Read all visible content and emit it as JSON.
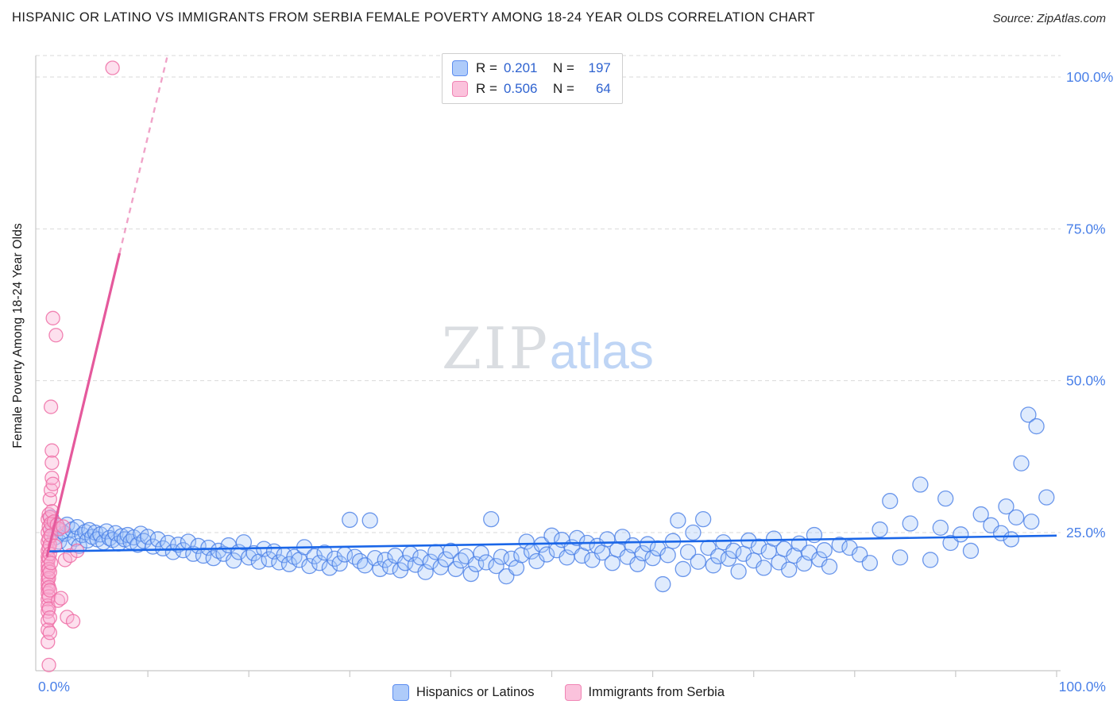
{
  "header": {
    "title": "HISPANIC OR LATINO VS IMMIGRANTS FROM SERBIA FEMALE POVERTY AMONG 18-24 YEAR OLDS CORRELATION CHART",
    "source": "Source: ZipAtlas.com"
  },
  "watermark": {
    "zip": "ZIP",
    "atlas": "atlas"
  },
  "correlation_legend": {
    "rows": [
      {
        "r_label": "R =",
        "r_value": "0.201",
        "n_label": "N =",
        "n_value": "197"
      },
      {
        "r_label": "R =",
        "r_value": "0.506",
        "n_label": "N =",
        "n_value": "64"
      }
    ]
  },
  "axes": {
    "y_label": "Female Poverty Among 18-24 Year Olds",
    "y_ticks": [
      {
        "value": 100,
        "label": "100.0%"
      },
      {
        "value": 75,
        "label": "75.0%"
      },
      {
        "value": 50,
        "label": "50.0%"
      },
      {
        "value": 25,
        "label": "25.0%"
      }
    ],
    "x_min_label": "0.0%",
    "x_max_label": "100.0%",
    "tick_color": "#4a80e8",
    "grid_color": "#d9d9d9",
    "axis_color": "#c8c8c8"
  },
  "bottom_legend": {
    "items": [
      {
        "label": "Hispanics or Latinos"
      },
      {
        "label": "Immigrants from Serbia"
      }
    ]
  },
  "chart_data": {
    "type": "scatter",
    "title": "Hispanic or Latino vs Immigrants from Serbia Female Poverty Among 18-24 Year Olds",
    "xlabel": "",
    "ylabel": "Female Poverty Among 18-24 Year Olds",
    "xlim": [
      0,
      100
    ],
    "ylim": [
      0,
      103.5
    ],
    "y_gridlines": [
      25,
      50,
      75,
      100
    ],
    "x_ticks": [
      10,
      20,
      30,
      40,
      50,
      60,
      70,
      80,
      90,
      100
    ],
    "grid": true,
    "legend_position": "bottom",
    "series": [
      {
        "name": "Hispanics or Latinos",
        "R": 0.201,
        "N": 197,
        "swatch_fill": "#aecbfa",
        "swatch_stroke": "#5c8df0",
        "point_fill": "rgba(164,199,250,0.35)",
        "point_stroke": "rgba(73,126,230,0.8)",
        "trend_color": "#1a66e8",
        "trend_solid": [
          [
            0,
            21.9
          ],
          [
            100,
            24.5
          ]
        ],
        "points": [
          [
            0.4,
            27.5
          ],
          [
            0.6,
            25.8
          ],
          [
            0.8,
            24.2
          ],
          [
            1.0,
            26.1
          ],
          [
            1.2,
            23.5
          ],
          [
            1.5,
            25.2
          ],
          [
            1.8,
            24.8
          ],
          [
            2.0,
            26.3
          ],
          [
            2.2,
            23.0
          ],
          [
            2.5,
            25.5
          ],
          [
            2.8,
            24.0
          ],
          [
            3.0,
            25.9
          ],
          [
            3.2,
            22.8
          ],
          [
            3.5,
            24.6
          ],
          [
            3.8,
            25.1
          ],
          [
            4.0,
            23.7
          ],
          [
            4.2,
            25.4
          ],
          [
            4.5,
            24.3
          ],
          [
            4.8,
            25.0
          ],
          [
            5.0,
            23.9
          ],
          [
            5.3,
            24.7
          ],
          [
            5.6,
            23.4
          ],
          [
            5.9,
            25.2
          ],
          [
            6.2,
            24.1
          ],
          [
            6.5,
            23.8
          ],
          [
            6.8,
            24.9
          ],
          [
            7.1,
            23.2
          ],
          [
            7.4,
            24.4
          ],
          [
            7.7,
            23.9
          ],
          [
            8.0,
            24.6
          ],
          [
            8.3,
            23.5
          ],
          [
            8.6,
            24.2
          ],
          [
            9.0,
            23.0
          ],
          [
            9.3,
            24.8
          ],
          [
            9.6,
            23.6
          ],
          [
            10.0,
            24.3
          ],
          [
            10.5,
            22.7
          ],
          [
            11.0,
            23.9
          ],
          [
            11.5,
            22.4
          ],
          [
            12.0,
            23.3
          ],
          [
            12.5,
            21.8
          ],
          [
            13.0,
            23.0
          ],
          [
            13.5,
            22.1
          ],
          [
            14.0,
            23.5
          ],
          [
            14.5,
            21.5
          ],
          [
            15.0,
            22.8
          ],
          [
            15.5,
            21.2
          ],
          [
            16.0,
            22.5
          ],
          [
            16.5,
            20.8
          ],
          [
            17.0,
            22.0
          ],
          [
            17.5,
            21.5
          ],
          [
            18.0,
            22.9
          ],
          [
            18.5,
            20.4
          ],
          [
            19.0,
            21.8
          ],
          [
            19.5,
            23.4
          ],
          [
            20.0,
            20.9
          ],
          [
            20.5,
            21.6
          ],
          [
            21.0,
            20.2
          ],
          [
            21.5,
            22.3
          ],
          [
            22.0,
            20.6
          ],
          [
            22.5,
            21.9
          ],
          [
            23.0,
            20.1
          ],
          [
            23.5,
            21.3
          ],
          [
            24.0,
            19.8
          ],
          [
            24.5,
            21.0
          ],
          [
            25.0,
            20.5
          ],
          [
            25.5,
            22.6
          ],
          [
            26.0,
            19.5
          ],
          [
            26.5,
            21.1
          ],
          [
            27.0,
            20.0
          ],
          [
            27.5,
            21.7
          ],
          [
            28.0,
            19.2
          ],
          [
            28.5,
            20.7
          ],
          [
            29.0,
            19.9
          ],
          [
            29.5,
            21.4
          ],
          [
            30.0,
            27.1
          ],
          [
            30.5,
            21.0
          ],
          [
            31.0,
            20.3
          ],
          [
            31.5,
            19.6
          ],
          [
            32.0,
            27.0
          ],
          [
            32.5,
            20.8
          ],
          [
            33.0,
            19.0
          ],
          [
            33.5,
            20.5
          ],
          [
            34.0,
            19.4
          ],
          [
            34.5,
            21.2
          ],
          [
            35.0,
            18.8
          ],
          [
            35.5,
            20.0
          ],
          [
            36.0,
            21.5
          ],
          [
            36.5,
            19.7
          ],
          [
            37.0,
            20.9
          ],
          [
            37.5,
            18.5
          ],
          [
            38.0,
            20.2
          ],
          [
            38.5,
            21.8
          ],
          [
            39.0,
            19.3
          ],
          [
            39.5,
            20.6
          ],
          [
            40.0,
            22.0
          ],
          [
            40.5,
            19.0
          ],
          [
            41.0,
            20.4
          ],
          [
            41.5,
            21.1
          ],
          [
            42.0,
            18.2
          ],
          [
            42.5,
            19.8
          ],
          [
            43.0,
            21.6
          ],
          [
            43.5,
            20.1
          ],
          [
            44.0,
            27.2
          ],
          [
            44.5,
            19.5
          ],
          [
            45.0,
            21.0
          ],
          [
            45.5,
            17.8
          ],
          [
            46.0,
            20.7
          ],
          [
            46.5,
            19.2
          ],
          [
            47.0,
            21.3
          ],
          [
            47.5,
            23.5
          ],
          [
            48.0,
            21.9
          ],
          [
            48.5,
            20.3
          ],
          [
            49.0,
            23.0
          ],
          [
            49.5,
            21.4
          ],
          [
            50.0,
            24.5
          ],
          [
            50.5,
            22.1
          ],
          [
            51.0,
            23.8
          ],
          [
            51.5,
            20.9
          ],
          [
            52.0,
            22.6
          ],
          [
            52.5,
            24.1
          ],
          [
            53.0,
            21.2
          ],
          [
            53.5,
            23.3
          ],
          [
            54.0,
            20.5
          ],
          [
            54.5,
            22.8
          ],
          [
            55.0,
            21.7
          ],
          [
            55.5,
            23.9
          ],
          [
            56.0,
            20.0
          ],
          [
            56.5,
            22.2
          ],
          [
            57.0,
            24.3
          ],
          [
            57.5,
            21.0
          ],
          [
            58.0,
            22.9
          ],
          [
            58.5,
            19.8
          ],
          [
            59.0,
            21.6
          ],
          [
            59.5,
            23.1
          ],
          [
            60.0,
            20.8
          ],
          [
            60.5,
            22.4
          ],
          [
            61.0,
            16.5
          ],
          [
            61.5,
            21.3
          ],
          [
            62.0,
            23.6
          ],
          [
            62.5,
            27.0
          ],
          [
            63.0,
            19.0
          ],
          [
            63.5,
            21.8
          ],
          [
            64.0,
            25.0
          ],
          [
            64.5,
            20.2
          ],
          [
            65.0,
            27.2
          ],
          [
            65.5,
            22.5
          ],
          [
            66.0,
            19.6
          ],
          [
            66.5,
            21.1
          ],
          [
            67.0,
            23.4
          ],
          [
            67.5,
            20.7
          ],
          [
            68.0,
            22.0
          ],
          [
            68.5,
            18.6
          ],
          [
            69.0,
            21.5
          ],
          [
            69.5,
            23.7
          ],
          [
            70.0,
            20.4
          ],
          [
            70.5,
            22.7
          ],
          [
            71.0,
            19.2
          ],
          [
            71.5,
            21.9
          ],
          [
            72.0,
            24.0
          ],
          [
            72.5,
            20.1
          ],
          [
            73.0,
            22.3
          ],
          [
            73.5,
            18.9
          ],
          [
            74.0,
            21.2
          ],
          [
            74.5,
            23.2
          ],
          [
            75.0,
            19.9
          ],
          [
            75.5,
            21.7
          ],
          [
            76.0,
            24.6
          ],
          [
            76.5,
            20.6
          ],
          [
            77.0,
            22.1
          ],
          [
            77.5,
            19.4
          ],
          [
            78.5,
            23.0
          ],
          [
            79.5,
            22.5
          ],
          [
            80.5,
            21.4
          ],
          [
            81.5,
            20.0
          ],
          [
            82.5,
            25.5
          ],
          [
            83.5,
            30.2
          ],
          [
            84.5,
            20.9
          ],
          [
            85.5,
            26.5
          ],
          [
            86.5,
            32.9
          ],
          [
            87.5,
            20.5
          ],
          [
            88.5,
            25.8
          ],
          [
            89.0,
            30.6
          ],
          [
            89.5,
            23.3
          ],
          [
            90.5,
            24.7
          ],
          [
            91.5,
            22.0
          ],
          [
            92.5,
            28.0
          ],
          [
            93.5,
            26.2
          ],
          [
            94.5,
            24.9
          ],
          [
            95.0,
            29.3
          ],
          [
            95.5,
            23.9
          ],
          [
            96.0,
            27.5
          ],
          [
            96.5,
            36.4
          ],
          [
            97.2,
            44.4
          ],
          [
            97.5,
            26.8
          ],
          [
            98.0,
            42.5
          ],
          [
            99.0,
            30.8
          ]
        ]
      },
      {
        "name": "Immigrants from Serbia",
        "R": 0.506,
        "N": 64,
        "swatch_fill": "#fbc2dc",
        "swatch_stroke": "#f084b4",
        "point_fill": "rgba(250,178,212,0.4)",
        "point_stroke": "rgba(238,110,166,0.85)",
        "trend_color": "#e5599c",
        "trend_solid": [
          [
            0,
            21.0
          ],
          [
            7.2,
            71.0
          ]
        ],
        "trend_dashed": [
          [
            7.2,
            71.0
          ],
          [
            11.9,
            103.2
          ]
        ],
        "points": [
          [
            0.1,
            27.2
          ],
          [
            0.1,
            25.0
          ],
          [
            0.1,
            23.5
          ],
          [
            0.1,
            22.0
          ],
          [
            0.1,
            21.0
          ],
          [
            0.1,
            20.2
          ],
          [
            0.1,
            19.5
          ],
          [
            0.1,
            18.8
          ],
          [
            0.1,
            18.0
          ],
          [
            0.1,
            17.2
          ],
          [
            0.1,
            16.5
          ],
          [
            0.1,
            15.8
          ],
          [
            0.1,
            15.0
          ],
          [
            0.1,
            14.0
          ],
          [
            0.1,
            13.0
          ],
          [
            0.1,
            12.0
          ],
          [
            0.1,
            10.5
          ],
          [
            0.1,
            9.0
          ],
          [
            0.1,
            7.0
          ],
          [
            0.2,
            28.0
          ],
          [
            0.2,
            26.0
          ],
          [
            0.2,
            24.0
          ],
          [
            0.2,
            22.5
          ],
          [
            0.2,
            20.8
          ],
          [
            0.2,
            19.0
          ],
          [
            0.2,
            17.5
          ],
          [
            0.2,
            16.0
          ],
          [
            0.2,
            14.5
          ],
          [
            0.2,
            12.5
          ],
          [
            0.2,
            3.2
          ],
          [
            0.3,
            30.5
          ],
          [
            0.3,
            27.5
          ],
          [
            0.3,
            25.5
          ],
          [
            0.3,
            23.0
          ],
          [
            0.3,
            21.5
          ],
          [
            0.3,
            18.5
          ],
          [
            0.3,
            15.5
          ],
          [
            0.3,
            11.0
          ],
          [
            0.3,
            8.5
          ],
          [
            0.4,
            45.7
          ],
          [
            0.4,
            32.0
          ],
          [
            0.4,
            26.5
          ],
          [
            0.4,
            24.5
          ],
          [
            0.4,
            20.0
          ],
          [
            0.5,
            38.5
          ],
          [
            0.5,
            36.5
          ],
          [
            0.5,
            34.0
          ],
          [
            0.5,
            28.5
          ],
          [
            0.6,
            60.3
          ],
          [
            0.6,
            33.0
          ],
          [
            0.7,
            26.8
          ],
          [
            0.8,
            22.8
          ],
          [
            0.9,
            57.5
          ],
          [
            1.0,
            26.3
          ],
          [
            1.1,
            13.8
          ],
          [
            1.2,
            25.6
          ],
          [
            1.4,
            14.2
          ],
          [
            1.6,
            26.0
          ],
          [
            1.8,
            20.5
          ],
          [
            2.0,
            11.1
          ],
          [
            2.3,
            21.2
          ],
          [
            2.6,
            10.4
          ],
          [
            3.0,
            22.0
          ],
          [
            6.5,
            101.5
          ]
        ]
      }
    ]
  }
}
